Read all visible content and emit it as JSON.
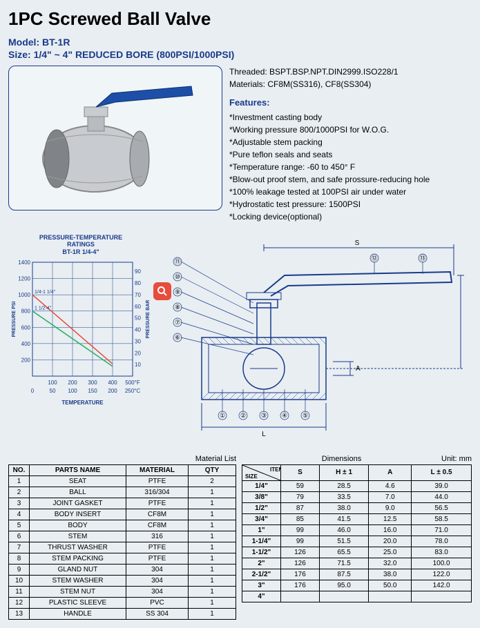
{
  "title": "1PC Screwed Ball Valve",
  "model_label": "Model:",
  "model": "BT-1R",
  "size_label": "Size:",
  "size": "1/4\" ~ 4\" REDUCED BORE (800PSI/1000PSI)",
  "threaded_label": "Threaded:",
  "threaded": "BSPT.BSP.NPT.DIN2999.ISO228/1",
  "materials_label": "Materials:",
  "materials": "CF8M(SS316), CF8(SS304)",
  "features_header": "Features:",
  "features": [
    "*Investment casting body",
    "*Working pressure 800/1000PSI for W.O.G.",
    "*Adjustable stem packing",
    "*Pure teflon seals and seats",
    "*Temperature range: -60 to 450° F",
    "*Blow-out proof stem, and safe prossure-reducing hole",
    "*100% leakage tested at 100PSI air under water",
    "*Hydrostatic test pressure: 1500PSI",
    "*Locking device(optional)"
  ],
  "chart": {
    "title_1": "PRESSURE-TEMPERATURE",
    "title_2": "RATINGS",
    "title_3": "BT-1R 1/4-4\"",
    "y_left_label": "PRESSURE PSI",
    "y_right_label": "PRESSURE BAR",
    "x_label": "TEMPERATURE",
    "y_left_ticks": [
      200,
      400,
      600,
      800,
      1000,
      1200,
      1400
    ],
    "y_right_ticks": [
      10,
      20,
      30,
      40,
      50,
      60,
      70,
      80,
      90
    ],
    "x_ticks_f": [
      100,
      200,
      300,
      400,
      "500°F"
    ],
    "x_ticks_c": [
      0,
      50,
      100,
      150,
      200,
      "250°C"
    ],
    "series": [
      {
        "label": "1/4-1 1/4\"",
        "color": "#e74c3c",
        "points": [
          [
            0,
            1000
          ],
          [
            400,
            150
          ]
        ]
      },
      {
        "label": "1 1/2-4\"",
        "color": "#27ae60",
        "points": [
          [
            0,
            800
          ],
          [
            400,
            120
          ]
        ]
      }
    ],
    "grid_color": "#1a3a8a",
    "bg": "#e8eef2"
  },
  "diagram": {
    "callouts_left": [
      "⑪",
      "⑩",
      "⑨",
      "⑧",
      "⑦",
      "⑥"
    ],
    "callouts_bottom": [
      "①",
      "②",
      "③",
      "④",
      "⑤"
    ],
    "callouts_top": [
      "⑫",
      "⑬"
    ],
    "dims": {
      "S": "S",
      "H": "H",
      "L": "L",
      "A": "A"
    },
    "line_color": "#1a3a8a"
  },
  "mat_caption": "Material List",
  "mat_headers": [
    "NO.",
    "PARTS NAME",
    "MATERIAL",
    "QTY"
  ],
  "mat_rows": [
    [
      "1",
      "SEAT",
      "PTFE",
      "2"
    ],
    [
      "2",
      "BALL",
      "316/304",
      "1"
    ],
    [
      "3",
      "JOINT GASKET",
      "PTFE",
      "1"
    ],
    [
      "4",
      "BODY INSERT",
      "CF8M",
      "1"
    ],
    [
      "5",
      "BODY",
      "CF8M",
      "1"
    ],
    [
      "6",
      "STEM",
      "316",
      "1"
    ],
    [
      "7",
      "THRUST WASHER",
      "PTFE",
      "1"
    ],
    [
      "8",
      "STEM PACKING",
      "PTFE",
      "1"
    ],
    [
      "9",
      "GLAND NUT",
      "304",
      "1"
    ],
    [
      "10",
      "STEM WASHER",
      "304",
      "1"
    ],
    [
      "11",
      "STEM NUT",
      "304",
      "1"
    ],
    [
      "12",
      "PLASTIC SLEEVE",
      "PVC",
      "1"
    ],
    [
      "13",
      "HANDLE",
      "SS 304",
      "1"
    ]
  ],
  "dim_caption": "Dimensions",
  "dim_unit": "Unit: mm",
  "dim_diag_label": "ITEM",
  "dim_size_label": "SIZE",
  "dim_headers": [
    "S",
    "H ± 1",
    "A",
    "L ± 0.5"
  ],
  "dim_rows": [
    [
      "1/4\"",
      "59",
      "28.5",
      "4.6",
      "39.0"
    ],
    [
      "3/8\"",
      "79",
      "33.5",
      "7.0",
      "44.0"
    ],
    [
      "1/2\"",
      "87",
      "38.0",
      "9.0",
      "56.5"
    ],
    [
      "3/4\"",
      "85",
      "41.5",
      "12.5",
      "58.5"
    ],
    [
      "1\"",
      "99",
      "46.0",
      "16.0",
      "71.0"
    ],
    [
      "1-1/4\"",
      "99",
      "51.5",
      "20.0",
      "78.0"
    ],
    [
      "1-1/2\"",
      "126",
      "65.5",
      "25.0",
      "83.0"
    ],
    [
      "2\"",
      "126",
      "71.5",
      "32.0",
      "100.0"
    ],
    [
      "2-1/2\"",
      "176",
      "87.5",
      "38.0",
      "122.0"
    ],
    [
      "3\"",
      "176",
      "95.0",
      "50.0",
      "142.0"
    ],
    [
      "4\"",
      "",
      "",
      "",
      ""
    ]
  ],
  "zoom_icon": "zoom"
}
